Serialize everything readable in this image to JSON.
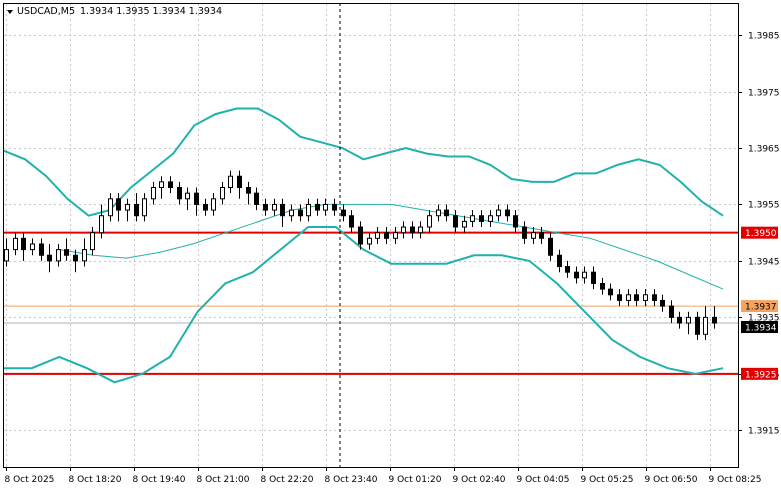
{
  "header": {
    "symbol": "USDCAD,M5",
    "ohlc": "1.3934 1.3935 1.3934 1.3934"
  },
  "chart_data": {
    "type": "line",
    "title": "USDCAD,M5",
    "price_ticks": [
      "1.3985",
      "1.3975",
      "1.3965",
      "1.3955",
      "1.3945",
      "1.3935",
      "1.3925",
      "1.3915"
    ],
    "price_tick_values": [
      1.3985,
      1.3975,
      1.3965,
      1.3955,
      1.3945,
      1.3935,
      1.3925,
      1.3915
    ],
    "ylim": [
      1.39085,
      1.39905
    ],
    "time_ticks": [
      "8 Oct 2025",
      "8 Oct 18:20",
      "8 Oct 19:40",
      "8 Oct 21:00",
      "8 Oct 22:20",
      "8 Oct 23:40",
      "9 Oct 01:20",
      "9 Oct 02:40",
      "9 Oct 04:05",
      "9 Oct 05:25",
      "9 Oct 06:50",
      "9 Oct 08:25"
    ],
    "levels": [
      {
        "label": "1.3950",
        "value": 1.395,
        "color": "#e00000",
        "bg": "#e00000",
        "fg": "#ffffff"
      },
      {
        "label": "1.3937",
        "value": 1.3937,
        "color": "#f4a460",
        "bg": "#f4a460",
        "fg": "#000000"
      },
      {
        "label": "1.3925",
        "value": 1.3925,
        "color": "#e00000",
        "bg": "#e00000",
        "fg": "#ffffff"
      }
    ],
    "current_price": {
      "label": "1.3934",
      "value": 1.3934
    },
    "band_color": "#20b2aa",
    "upper_band": [
      1.39645,
      1.3963,
      1.396,
      1.3956,
      1.3953,
      1.3954,
      1.3958,
      1.3961,
      1.3964,
      1.3969,
      1.3971,
      1.3972,
      1.3972,
      1.397,
      1.3967,
      1.3966,
      1.3965,
      1.3963,
      1.3964,
      1.3965,
      1.3964,
      1.39635,
      1.39635,
      1.3962,
      1.39595,
      1.3959,
      1.3959,
      1.39605,
      1.39605,
      1.3962,
      1.3963,
      1.3962,
      1.3959,
      1.39555,
      1.3953
    ],
    "middle_band": [
      1.3947,
      1.3946,
      1.39455,
      1.39465,
      1.3948,
      1.395,
      1.3952,
      1.3954,
      1.3955,
      1.3955,
      1.3955,
      1.3954,
      1.3953,
      1.3952,
      1.3951,
      1.395,
      1.3949,
      1.3947,
      1.3945,
      1.39425,
      1.394
    ],
    "lower_band": [
      1.3926,
      1.3926,
      1.3928,
      1.3926,
      1.39235,
      1.3925,
      1.3928,
      1.3936,
      1.3941,
      1.3943,
      1.3947,
      1.3951,
      1.3951,
      1.3947,
      1.39445,
      1.39445,
      1.39445,
      1.3946,
      1.3946,
      1.3945,
      1.3941,
      1.3936,
      1.3931,
      1.3928,
      1.3926,
      1.3925,
      1.3926
    ],
    "candles": [
      [
        1.3945,
        1.3947,
        1.3944,
        1.3949
      ],
      [
        1.3947,
        1.3949,
        1.3946,
        1.395
      ],
      [
        1.3949,
        1.3947,
        1.3945,
        1.395
      ],
      [
        1.3947,
        1.3948,
        1.3946,
        1.3949
      ],
      [
        1.3948,
        1.3946,
        1.3945,
        1.3949
      ],
      [
        1.3946,
        1.3945,
        1.3943,
        1.3948
      ],
      [
        1.3945,
        1.3947,
        1.3944,
        1.3948
      ],
      [
        1.3947,
        1.3946,
        1.3945,
        1.3949
      ],
      [
        1.3946,
        1.3945,
        1.3943,
        1.3947
      ],
      [
        1.3945,
        1.3947,
        1.3944,
        1.3949
      ],
      [
        1.3947,
        1.395,
        1.3946,
        1.3951
      ],
      [
        1.395,
        1.3953,
        1.3949,
        1.3955
      ],
      [
        1.3953,
        1.3956,
        1.3952,
        1.3957
      ],
      [
        1.3956,
        1.3954,
        1.3952,
        1.3957
      ],
      [
        1.3954,
        1.3955,
        1.3952,
        1.3956
      ],
      [
        1.3955,
        1.3953,
        1.3952,
        1.3957
      ],
      [
        1.3953,
        1.3956,
        1.3952,
        1.3957
      ],
      [
        1.3956,
        1.3958,
        1.3955,
        1.3959
      ],
      [
        1.3958,
        1.3959,
        1.3956,
        1.396
      ],
      [
        1.3959,
        1.3958,
        1.3957,
        1.396
      ],
      [
        1.3958,
        1.3956,
        1.3955,
        1.3959
      ],
      [
        1.3956,
        1.3957,
        1.3954,
        1.3958
      ],
      [
        1.3957,
        1.3955,
        1.3953,
        1.3958
      ],
      [
        1.3955,
        1.3954,
        1.3953,
        1.3956
      ],
      [
        1.3954,
        1.3956,
        1.3953,
        1.3957
      ],
      [
        1.3956,
        1.3958,
        1.3955,
        1.3959
      ],
      [
        1.3958,
        1.396,
        1.3957,
        1.3961
      ],
      [
        1.396,
        1.3958,
        1.3956,
        1.3961
      ],
      [
        1.3958,
        1.3957,
        1.3955,
        1.3959
      ],
      [
        1.3957,
        1.3955,
        1.3954,
        1.3958
      ],
      [
        1.3955,
        1.3954,
        1.3953,
        1.3956
      ],
      [
        1.3954,
        1.3955,
        1.3953,
        1.3956
      ],
      [
        1.3955,
        1.3953,
        1.3951,
        1.3956
      ],
      [
        1.3953,
        1.3954,
        1.3952,
        1.3955
      ],
      [
        1.3954,
        1.3953,
        1.3952,
        1.3955
      ],
      [
        1.3953,
        1.3955,
        1.3952,
        1.3956
      ],
      [
        1.3955,
        1.3954,
        1.3953,
        1.3956
      ],
      [
        1.3954,
        1.3955,
        1.3953,
        1.3956
      ],
      [
        1.3955,
        1.3954,
        1.3953,
        1.3956
      ],
      [
        1.3954,
        1.3953,
        1.3952,
        1.3955
      ],
      [
        1.3953,
        1.3951,
        1.395,
        1.3954
      ],
      [
        1.3951,
        1.3948,
        1.3947,
        1.3952
      ],
      [
        1.3948,
        1.3949,
        1.3947,
        1.395
      ],
      [
        1.3949,
        1.395,
        1.3948,
        1.3951
      ],
      [
        1.395,
        1.3949,
        1.3948,
        1.3951
      ],
      [
        1.3949,
        1.395,
        1.3948,
        1.3951
      ],
      [
        1.395,
        1.3951,
        1.3949,
        1.3952
      ],
      [
        1.3951,
        1.395,
        1.3949,
        1.3952
      ],
      [
        1.395,
        1.3951,
        1.3949,
        1.3952
      ],
      [
        1.3951,
        1.3953,
        1.395,
        1.3954
      ],
      [
        1.3953,
        1.3954,
        1.3952,
        1.3955
      ],
      [
        1.3954,
        1.3953,
        1.3952,
        1.3955
      ],
      [
        1.3953,
        1.3951,
        1.395,
        1.3954
      ],
      [
        1.3951,
        1.3952,
        1.395,
        1.3953
      ],
      [
        1.3952,
        1.3953,
        1.3951,
        1.3954
      ],
      [
        1.3953,
        1.3952,
        1.3951,
        1.3954
      ],
      [
        1.3952,
        1.3953,
        1.3951,
        1.3954
      ],
      [
        1.3953,
        1.3954,
        1.3952,
        1.3955
      ],
      [
        1.3954,
        1.3953,
        1.3952,
        1.3955
      ],
      [
        1.3953,
        1.3951,
        1.395,
        1.3954
      ],
      [
        1.3951,
        1.3949,
        1.3948,
        1.3952
      ],
      [
        1.3949,
        1.395,
        1.3948,
        1.3951
      ],
      [
        1.395,
        1.3949,
        1.3948,
        1.3951
      ],
      [
        1.3949,
        1.3946,
        1.3945,
        1.395
      ],
      [
        1.3946,
        1.3944,
        1.3943,
        1.3947
      ],
      [
        1.3944,
        1.3943,
        1.3942,
        1.3945
      ],
      [
        1.3943,
        1.3942,
        1.3941,
        1.3944
      ],
      [
        1.3942,
        1.3943,
        1.3941,
        1.3944
      ],
      [
        1.3943,
        1.3941,
        1.394,
        1.3944
      ],
      [
        1.3941,
        1.394,
        1.3939,
        1.3942
      ],
      [
        1.394,
        1.3939,
        1.3938,
        1.3941
      ],
      [
        1.3939,
        1.3938,
        1.3937,
        1.394
      ],
      [
        1.3938,
        1.3939,
        1.3937,
        1.394
      ],
      [
        1.3939,
        1.3938,
        1.3937,
        1.394
      ],
      [
        1.3938,
        1.3939,
        1.3937,
        1.394
      ],
      [
        1.3939,
        1.3938,
        1.3937,
        1.394
      ],
      [
        1.3938,
        1.3937,
        1.3936,
        1.3939
      ],
      [
        1.3937,
        1.3935,
        1.3934,
        1.3938
      ],
      [
        1.3935,
        1.3934,
        1.3933,
        1.3936
      ],
      [
        1.3934,
        1.3935,
        1.3932,
        1.3936
      ],
      [
        1.3935,
        1.3932,
        1.3931,
        1.3936
      ],
      [
        1.3932,
        1.3935,
        1.3931,
        1.3937
      ],
      [
        1.3935,
        1.3934,
        1.3933,
        1.3937
      ]
    ]
  }
}
